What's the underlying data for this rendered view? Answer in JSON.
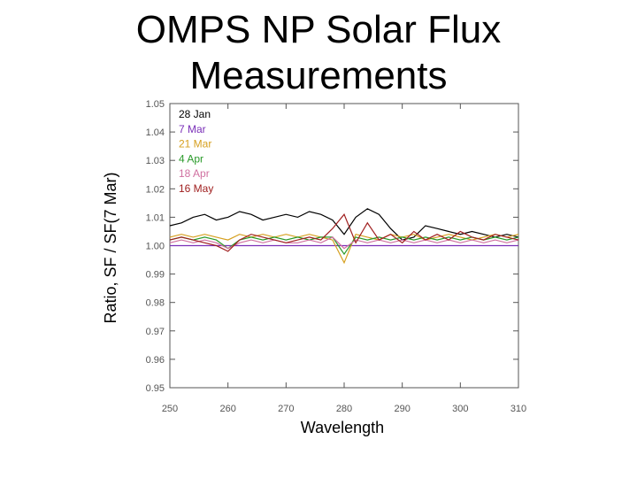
{
  "slide": {
    "title_line1": "OMPS NP Solar Flux",
    "title_line2": "Measurements"
  },
  "chart_data": {
    "type": "line",
    "title": "",
    "xlabel": "Wavelength",
    "ylabel": "Ratio, SF / SF(7 Mar)",
    "xlim": [
      250,
      310
    ],
    "ylim": [
      0.95,
      1.05
    ],
    "xticks": [
      250,
      260,
      270,
      280,
      290,
      300,
      310
    ],
    "yticks": [
      0.95,
      0.96,
      0.97,
      0.98,
      0.99,
      1.0,
      1.01,
      1.02,
      1.03,
      1.04,
      1.05
    ],
    "ytick_labels": [
      "0.95",
      "0.96",
      "0.97",
      "0.98",
      "0.99",
      "1.00",
      "1.01",
      "1.02",
      "1.03",
      "1.04",
      "1.05"
    ],
    "grid": false,
    "legend_position": "top-left",
    "series": [
      {
        "name": "28 Jan",
        "color": "#000000",
        "x": [
          250,
          252,
          254,
          256,
          258,
          260,
          262,
          264,
          266,
          268,
          270,
          272,
          274,
          276,
          278,
          280,
          282,
          284,
          286,
          288,
          290,
          292,
          294,
          296,
          298,
          300,
          302,
          304,
          306,
          308,
          310
        ],
        "y": [
          1.007,
          1.008,
          1.01,
          1.011,
          1.009,
          1.01,
          1.012,
          1.011,
          1.009,
          1.01,
          1.011,
          1.01,
          1.012,
          1.011,
          1.009,
          1.004,
          1.01,
          1.013,
          1.011,
          1.006,
          1.002,
          1.003,
          1.007,
          1.006,
          1.005,
          1.004,
          1.005,
          1.004,
          1.003,
          1.004,
          1.003
        ]
      },
      {
        "name": "7 Mar",
        "color": "#7a2fb8",
        "x": [
          250,
          310
        ],
        "y": [
          1.0,
          1.0
        ]
      },
      {
        "name": "21 Mar",
        "color": "#d6a020",
        "x": [
          250,
          252,
          254,
          256,
          258,
          260,
          262,
          264,
          266,
          268,
          270,
          272,
          274,
          276,
          278,
          280,
          282,
          284,
          286,
          288,
          290,
          292,
          294,
          296,
          298,
          300,
          302,
          304,
          306,
          308,
          310
        ],
        "y": [
          1.003,
          1.004,
          1.003,
          1.004,
          1.003,
          1.002,
          1.004,
          1.003,
          1.004,
          1.003,
          1.004,
          1.003,
          1.004,
          1.003,
          1.002,
          0.994,
          1.004,
          1.003,
          1.002,
          1.004,
          1.003,
          1.004,
          1.002,
          1.003,
          1.004,
          1.003,
          1.002,
          1.003,
          1.004,
          1.003,
          1.004
        ]
      },
      {
        "name": "4 Apr",
        "color": "#2a9a2a",
        "x": [
          250,
          252,
          254,
          256,
          258,
          260,
          262,
          264,
          266,
          268,
          270,
          272,
          274,
          276,
          278,
          280,
          282,
          284,
          286,
          288,
          290,
          292,
          294,
          296,
          298,
          300,
          302,
          304,
          306,
          308,
          310
        ],
        "y": [
          1.002,
          1.003,
          1.002,
          1.003,
          1.002,
          0.999,
          1.002,
          1.003,
          1.002,
          1.003,
          1.002,
          1.003,
          1.002,
          1.003,
          1.003,
          0.997,
          1.003,
          1.002,
          1.003,
          1.002,
          1.003,
          1.002,
          1.003,
          1.002,
          1.003,
          1.002,
          1.003,
          1.002,
          1.003,
          1.002,
          1.003
        ]
      },
      {
        "name": "18 Apr",
        "color": "#d070a0",
        "x": [
          250,
          252,
          254,
          256,
          258,
          260,
          262,
          264,
          266,
          268,
          270,
          272,
          274,
          276,
          278,
          280,
          282,
          284,
          286,
          288,
          290,
          292,
          294,
          296,
          298,
          300,
          302,
          304,
          306,
          308,
          310
        ],
        "y": [
          1.001,
          1.002,
          1.001,
          1.002,
          1.001,
          0.999,
          1.001,
          1.002,
          1.001,
          1.002,
          1.001,
          1.001,
          1.002,
          1.001,
          1.003,
          0.999,
          1.002,
          1.001,
          1.002,
          1.001,
          1.002,
          1.001,
          1.002,
          1.001,
          1.002,
          1.001,
          1.002,
          1.001,
          1.002,
          1.001,
          1.002
        ]
      },
      {
        "name": "16 May",
        "color": "#a02020",
        "x": [
          250,
          252,
          254,
          256,
          258,
          260,
          262,
          264,
          266,
          268,
          270,
          272,
          274,
          276,
          278,
          280,
          282,
          284,
          286,
          288,
          290,
          292,
          294,
          296,
          298,
          300,
          302,
          304,
          306,
          308,
          310
        ],
        "y": [
          1.002,
          1.003,
          1.002,
          1.001,
          1.0,
          0.998,
          1.002,
          1.004,
          1.003,
          1.002,
          1.001,
          1.002,
          1.003,
          1.002,
          1.006,
          1.011,
          1.001,
          1.008,
          1.002,
          1.004,
          1.001,
          1.005,
          1.002,
          1.004,
          1.002,
          1.005,
          1.003,
          1.002,
          1.004,
          1.003,
          1.002
        ]
      }
    ]
  }
}
